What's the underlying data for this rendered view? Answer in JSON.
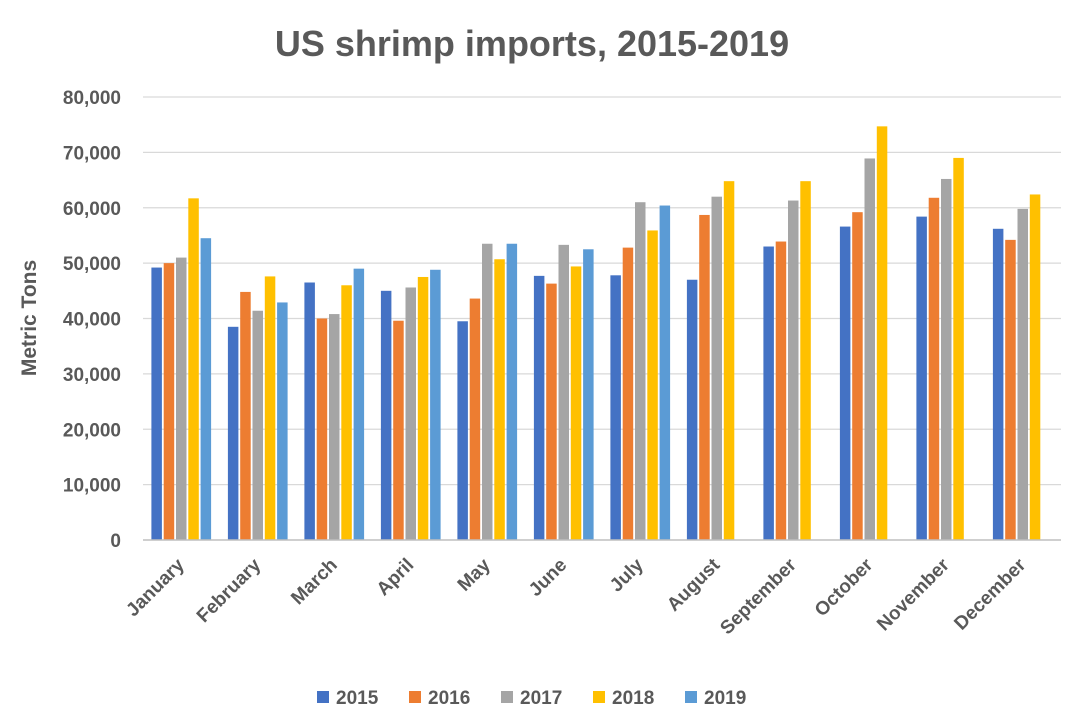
{
  "chart_data": {
    "type": "bar",
    "title": "US shrimp imports, 2015-2019",
    "ylabel": "Metric Tons",
    "xlabel": "",
    "ylim": [
      0,
      80000
    ],
    "yticks": [
      0,
      10000,
      20000,
      30000,
      40000,
      50000,
      60000,
      70000,
      80000
    ],
    "ytick_labels": [
      "0",
      "10,000",
      "20,000",
      "30,000",
      "40,000",
      "50,000",
      "60,000",
      "70,000",
      "80,000"
    ],
    "grid": true,
    "legend_position": "bottom",
    "categories": [
      "January",
      "February",
      "March",
      "April",
      "May",
      "June",
      "July",
      "August",
      "September",
      "October",
      "November",
      "December"
    ],
    "series": [
      {
        "name": "2015",
        "color": "#4472c4",
        "values": [
          49200,
          38500,
          46500,
          45000,
          39500,
          47700,
          47800,
          47000,
          53000,
          56600,
          58400,
          56200
        ]
      },
      {
        "name": "2016",
        "color": "#ed7d31",
        "values": [
          50000,
          44800,
          40000,
          39600,
          43600,
          46300,
          52800,
          58700,
          53900,
          59200,
          61800,
          54200
        ]
      },
      {
        "name": "2017",
        "color": "#a5a5a5",
        "values": [
          51000,
          41400,
          40800,
          45600,
          53500,
          53300,
          61000,
          62000,
          61300,
          68900,
          65200,
          59800
        ]
      },
      {
        "name": "2018",
        "color": "#ffc000",
        "values": [
          61700,
          47600,
          46000,
          47500,
          50700,
          49400,
          55900,
          64800,
          64800,
          74700,
          69000,
          62400
        ]
      },
      {
        "name": "2019",
        "color": "#5b9bd5",
        "values": [
          54500,
          42900,
          49000,
          48800,
          53500,
          52500,
          60400,
          null,
          null,
          null,
          null,
          null
        ]
      }
    ]
  }
}
